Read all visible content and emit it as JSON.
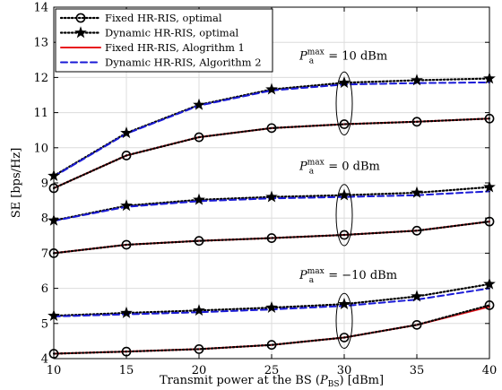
{
  "chart_data": {
    "type": "line",
    "xlabel_prefix": "Transmit power at the BS (",
    "xlabel_var": "P",
    "xlabel_sub": "BS",
    "xlabel_suffix": ") [dBm]",
    "ylabel": "SE [bps/Hz]",
    "x": [
      10,
      15,
      20,
      25,
      30,
      35,
      40
    ],
    "xlim": [
      10,
      40
    ],
    "ylim": [
      4,
      14
    ],
    "xticks": [
      "10",
      "15",
      "20",
      "25",
      "30",
      "35",
      "40"
    ],
    "yticks": [
      "4",
      "5",
      "6",
      "7",
      "8",
      "9",
      "10",
      "11",
      "12",
      "13",
      "14"
    ],
    "grid": true,
    "legend_position": "top-left",
    "legend": [
      "Fixed HR-RIS, optimal",
      "Dynamic HR-RIS, optimal",
      "Fixed HR-RIS, Alogrithm 1",
      "Dynamic HR-RIS, Algorithm 2"
    ],
    "colors": {
      "optimal": "#000000",
      "alg1": "#e8141c",
      "alg2": "#1a1ad6"
    },
    "groups": [
      {
        "annotation_value": " = 10 dBm",
        "fixed_optimal": [
          8.85,
          9.78,
          10.3,
          10.56,
          10.67,
          10.74,
          10.83
        ],
        "dynamic_optimal": [
          9.2,
          10.42,
          11.22,
          11.66,
          11.85,
          11.92,
          11.97
        ],
        "fixed_alg1": [
          8.85,
          9.78,
          10.3,
          10.56,
          10.67,
          10.74,
          10.83
        ],
        "dynamic_alg2": [
          9.18,
          10.4,
          11.2,
          11.63,
          11.8,
          11.84,
          11.86
        ]
      },
      {
        "annotation_value": " = 0 dBm",
        "fixed_optimal": [
          7.0,
          7.24,
          7.35,
          7.43,
          7.52,
          7.64,
          7.9
        ],
        "dynamic_optimal": [
          7.93,
          8.35,
          8.52,
          8.6,
          8.65,
          8.72,
          8.88
        ],
        "fixed_alg1": [
          7.0,
          7.24,
          7.35,
          7.43,
          7.52,
          7.64,
          7.9
        ],
        "dynamic_alg2": [
          7.92,
          8.32,
          8.48,
          8.56,
          8.6,
          8.65,
          8.76
        ]
      },
      {
        "annotation_value": " = −10 dBm",
        "fixed_optimal": [
          4.14,
          4.2,
          4.27,
          4.39,
          4.6,
          4.96,
          5.52
        ],
        "dynamic_optimal": [
          5.22,
          5.3,
          5.37,
          5.45,
          5.55,
          5.77,
          6.12
        ],
        "fixed_alg1": [
          4.14,
          4.2,
          4.27,
          4.39,
          4.6,
          4.96,
          5.48
        ],
        "dynamic_alg2": [
          5.2,
          5.26,
          5.32,
          5.4,
          5.5,
          5.68,
          6.0
        ]
      }
    ],
    "annotation_var": "P",
    "annotation_sub": "a",
    "annotation_sup": "max"
  }
}
